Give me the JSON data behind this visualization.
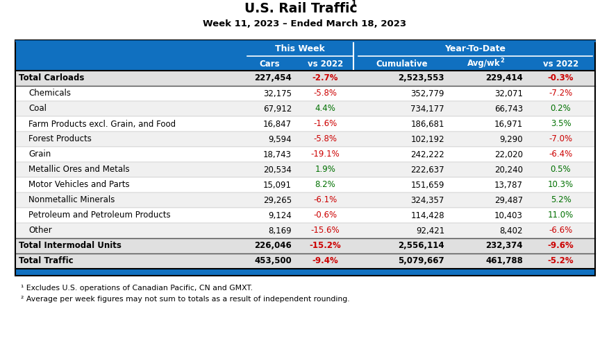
{
  "title_main": "U.S. Rail Traffic",
  "title_super": "1",
  "subtitle": "Week 11, 2023 – Ended March 18, 2023",
  "header1": "This Week",
  "header2": "Year-To-Date",
  "col_headers": [
    "Cars",
    "vs 2022",
    "Cumulative",
    "Avg/wk",
    "vs 2022"
  ],
  "avgwk_super": "2",
  "rows": [
    {
      "label": "Total Carloads",
      "bold": true,
      "indent": false,
      "cars": "227,454",
      "vs2022_w": "-2.7%",
      "cumulative": "2,523,553",
      "avgwk": "229,414",
      "vs2022_y": "-0.3%",
      "vs2022_w_color": "red",
      "vs2022_y_color": "red"
    },
    {
      "label": "Chemicals",
      "bold": false,
      "indent": true,
      "cars": "32,175",
      "vs2022_w": "-5.8%",
      "cumulative": "352,779",
      "avgwk": "32,071",
      "vs2022_y": "-7.2%",
      "vs2022_w_color": "red",
      "vs2022_y_color": "red"
    },
    {
      "label": "Coal",
      "bold": false,
      "indent": true,
      "cars": "67,912",
      "vs2022_w": "4.4%",
      "cumulative": "734,177",
      "avgwk": "66,743",
      "vs2022_y": "0.2%",
      "vs2022_w_color": "green",
      "vs2022_y_color": "green"
    },
    {
      "label": "Farm Products excl. Grain, and Food",
      "bold": false,
      "indent": true,
      "cars": "16,847",
      "vs2022_w": "-1.6%",
      "cumulative": "186,681",
      "avgwk": "16,971",
      "vs2022_y": "3.5%",
      "vs2022_w_color": "red",
      "vs2022_y_color": "green"
    },
    {
      "label": "Forest Products",
      "bold": false,
      "indent": true,
      "cars": "9,594",
      "vs2022_w": "-5.8%",
      "cumulative": "102,192",
      "avgwk": "9,290",
      "vs2022_y": "-7.0%",
      "vs2022_w_color": "red",
      "vs2022_y_color": "red"
    },
    {
      "label": "Grain",
      "bold": false,
      "indent": true,
      "cars": "18,743",
      "vs2022_w": "-19.1%",
      "cumulative": "242,222",
      "avgwk": "22,020",
      "vs2022_y": "-6.4%",
      "vs2022_w_color": "red",
      "vs2022_y_color": "red"
    },
    {
      "label": "Metallic Ores and Metals",
      "bold": false,
      "indent": true,
      "cars": "20,534",
      "vs2022_w": "1.9%",
      "cumulative": "222,637",
      "avgwk": "20,240",
      "vs2022_y": "0.5%",
      "vs2022_w_color": "green",
      "vs2022_y_color": "green"
    },
    {
      "label": "Motor Vehicles and Parts",
      "bold": false,
      "indent": true,
      "cars": "15,091",
      "vs2022_w": "8.2%",
      "cumulative": "151,659",
      "avgwk": "13,787",
      "vs2022_y": "10.3%",
      "vs2022_w_color": "green",
      "vs2022_y_color": "green"
    },
    {
      "label": "Nonmetallic Minerals",
      "bold": false,
      "indent": true,
      "cars": "29,265",
      "vs2022_w": "-6.1%",
      "cumulative": "324,357",
      "avgwk": "29,487",
      "vs2022_y": "5.2%",
      "vs2022_w_color": "red",
      "vs2022_y_color": "green"
    },
    {
      "label": "Petroleum and Petroleum Products",
      "bold": false,
      "indent": true,
      "cars": "9,124",
      "vs2022_w": "-0.6%",
      "cumulative": "114,428",
      "avgwk": "10,403",
      "vs2022_y": "11.0%",
      "vs2022_w_color": "red",
      "vs2022_y_color": "green"
    },
    {
      "label": "Other",
      "bold": false,
      "indent": true,
      "cars": "8,169",
      "vs2022_w": "-15.6%",
      "cumulative": "92,421",
      "avgwk": "8,402",
      "vs2022_y": "-6.6%",
      "vs2022_w_color": "red",
      "vs2022_y_color": "red"
    },
    {
      "label": "Total Intermodal Units",
      "bold": true,
      "indent": false,
      "cars": "226,046",
      "vs2022_w": "-15.2%",
      "cumulative": "2,556,114",
      "avgwk": "232,374",
      "vs2022_y": "-9.6%",
      "vs2022_w_color": "red",
      "vs2022_y_color": "red"
    },
    {
      "label": "Total Traffic",
      "bold": true,
      "indent": false,
      "cars": "453,500",
      "vs2022_w": "-9.4%",
      "cumulative": "5,079,667",
      "avgwk": "461,788",
      "vs2022_y": "-5.2%",
      "vs2022_w_color": "red",
      "vs2022_y_color": "red"
    }
  ],
  "footnote1": "¹ Excludes U.S. operations of Canadian Pacific, CN and GMXT.",
  "footnote2": "² Average per week figures may not sum to totals as a result of independent rounding.",
  "header_bg": "#1070C0",
  "row_bg_even": "#F0F0F0",
  "row_bg_odd": "#FFFFFF",
  "bold_row_bg": "#E0E0E0",
  "red_color": "#CC0000",
  "green_color": "#007000",
  "black_color": "#000000",
  "white_color": "#FFFFFF"
}
